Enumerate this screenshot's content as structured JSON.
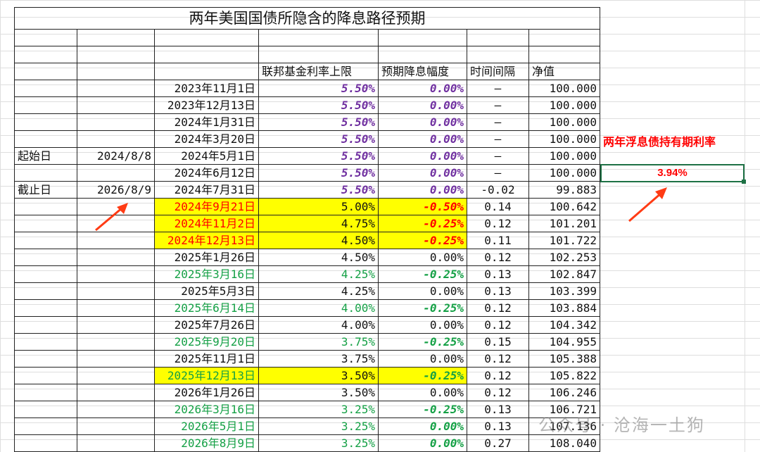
{
  "title": "两年美国国债所隐含的降息路径预期",
  "headers": {
    "rate_cap": "联邦基金利率上限",
    "expected_cut": "预期降息幅度",
    "interval": "时间间隔",
    "nav": "净值"
  },
  "side": {
    "start_label": "起始日",
    "start_date": "2024/8/8",
    "end_label": "截止日",
    "end_date": "2026/8/9",
    "float_rate_label": "两年浮息债持有期利率",
    "float_rate_value": "3.94%"
  },
  "rows": [
    {
      "date": "2023年11月1日",
      "rate": "5.50%",
      "cut": "0.00%",
      "interval": "–",
      "nav": "100.000",
      "style": "purple"
    },
    {
      "date": "2023年12月13日",
      "rate": "5.50%",
      "cut": "0.00%",
      "interval": "–",
      "nav": "100.000",
      "style": "purple"
    },
    {
      "date": "2024年1月31日",
      "rate": "5.50%",
      "cut": "0.00%",
      "interval": "–",
      "nav": "100.000",
      "style": "purple"
    },
    {
      "date": "2024年3月20日",
      "rate": "5.50%",
      "cut": "0.00%",
      "interval": "–",
      "nav": "100.000",
      "style": "purple"
    },
    {
      "date": "2024年5月1日",
      "rate": "5.50%",
      "cut": "0.00%",
      "interval": "–",
      "nav": "100.000",
      "style": "purple"
    },
    {
      "date": "2024年6月12日",
      "rate": "5.50%",
      "cut": "0.00%",
      "interval": "–",
      "nav": "100.000",
      "style": "purple"
    },
    {
      "date": "2024年7月31日",
      "rate": "5.50%",
      "cut": "0.00%",
      "interval": "-0.02",
      "nav": "99.883",
      "style": "purple"
    },
    {
      "date": "2024年9月21日",
      "rate": "5.00%",
      "cut": "-0.50%",
      "interval": "0.14",
      "nav": "100.642",
      "style": "red-hl"
    },
    {
      "date": "2024年11月2日",
      "rate": "4.75%",
      "cut": "-0.25%",
      "interval": "0.12",
      "nav": "101.201",
      "style": "red-hl"
    },
    {
      "date": "2024年12月13日",
      "rate": "4.50%",
      "cut": "-0.25%",
      "interval": "0.11",
      "nav": "101.722",
      "style": "red-hl"
    },
    {
      "date": "2025年1月26日",
      "rate": "4.50%",
      "cut": "0.00%",
      "interval": "0.12",
      "nav": "102.253",
      "style": "plain"
    },
    {
      "date": "2025年3月16日",
      "rate": "4.25%",
      "cut": "-0.25%",
      "interval": "0.13",
      "nav": "102.847",
      "style": "green"
    },
    {
      "date": "2025年5月3日",
      "rate": "4.25%",
      "cut": "0.00%",
      "interval": "0.13",
      "nav": "103.399",
      "style": "plain"
    },
    {
      "date": "2025年6月14日",
      "rate": "4.00%",
      "cut": "-0.25%",
      "interval": "0.12",
      "nav": "103.884",
      "style": "green"
    },
    {
      "date": "2025年7月26日",
      "rate": "4.00%",
      "cut": "0.00%",
      "interval": "0.12",
      "nav": "104.342",
      "style": "plain"
    },
    {
      "date": "2025年9月20日",
      "rate": "3.75%",
      "cut": "-0.25%",
      "interval": "0.15",
      "nav": "104.955",
      "style": "green"
    },
    {
      "date": "2025年11月1日",
      "rate": "3.75%",
      "cut": "0.00%",
      "interval": "0.12",
      "nav": "105.388",
      "style": "plain"
    },
    {
      "date": "2025年12月13日",
      "rate": "3.50%",
      "cut": "-0.25%",
      "interval": "0.12",
      "nav": "105.822",
      "style": "green-hl"
    },
    {
      "date": "2026年1月26日",
      "rate": "3.50%",
      "cut": "0.00%",
      "interval": "0.12",
      "nav": "106.246",
      "style": "plain"
    },
    {
      "date": "2026年3月16日",
      "rate": "3.25%",
      "cut": "-0.25%",
      "interval": "0.13",
      "nav": "106.721",
      "style": "green"
    },
    {
      "date": "2026年5月1日",
      "rate": "3.25%",
      "cut": "0.00%",
      "interval": "0.13",
      "nav": "107.136",
      "style": "green-end"
    },
    {
      "date": "2026年8月9日",
      "rate": "3.25%",
      "cut": "0.00%",
      "interval": "0.27",
      "nav": "108.040",
      "style": "green-end"
    }
  ],
  "watermark": "公众号 · 沧海一土狗",
  "colors": {
    "purple": "#7030a0",
    "red": "#ff0000",
    "green": "#14a045",
    "highlight": "#ffff00",
    "selection": "#1e7145"
  }
}
